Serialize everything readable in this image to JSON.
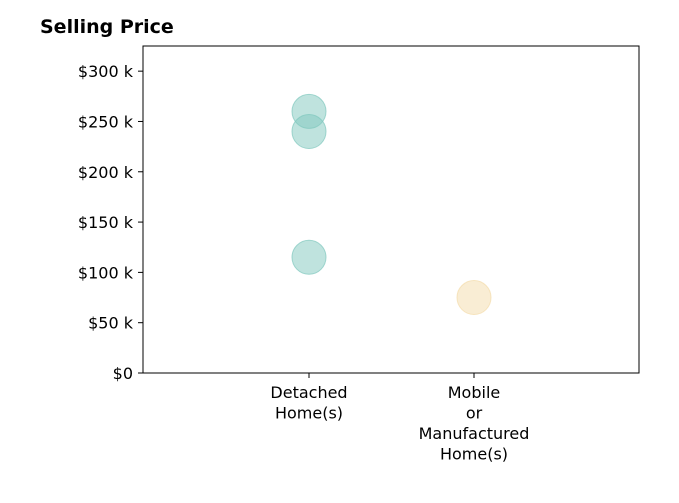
{
  "chart_data": {
    "type": "scatter",
    "title": "Selling Price",
    "xlabel": "",
    "ylabel": "",
    "categories": [
      [
        "Detached",
        "Home(s)"
      ],
      [
        "Mobile",
        "or",
        "Manufactured",
        "Home(s)"
      ]
    ],
    "ylim": [
      0,
      325000
    ],
    "yticks": [
      {
        "value": 0,
        "label": "$0"
      },
      {
        "value": 50000,
        "label": "$50 k"
      },
      {
        "value": 100000,
        "label": "$100 k"
      },
      {
        "value": 150000,
        "label": "$150 k"
      },
      {
        "value": 200000,
        "label": "$200 k"
      },
      {
        "value": 250000,
        "label": "$250 k"
      },
      {
        "value": 300000,
        "label": "$300 k"
      }
    ],
    "points": [
      {
        "category": 0,
        "value": 260000,
        "color": "#7fc7bd"
      },
      {
        "category": 0,
        "value": 240000,
        "color": "#7fc7bd"
      },
      {
        "category": 0,
        "value": 115000,
        "color": "#7fc7bd"
      },
      {
        "category": 1,
        "value": 75000,
        "color": "#f3dcaa"
      }
    ],
    "grid": false,
    "legend": "none"
  }
}
